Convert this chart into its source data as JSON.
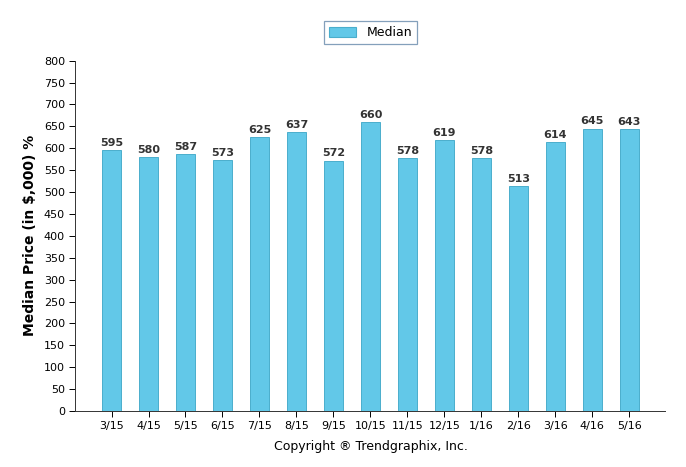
{
  "categories": [
    "3/15",
    "4/15",
    "5/15",
    "6/15",
    "7/15",
    "8/15",
    "9/15",
    "10/15",
    "11/15",
    "12/15",
    "1/16",
    "2/16",
    "3/16",
    "4/16",
    "5/16"
  ],
  "values": [
    595,
    580,
    587,
    573,
    625,
    637,
    572,
    660,
    578,
    619,
    578,
    513,
    614,
    645,
    643
  ],
  "bar_color": "#62C8E8",
  "bar_edge_color": "#4AAECC",
  "ylabel": "Median Price (in $,000) %",
  "xlabel": "Copyright ® Trendgraphix, Inc.",
  "ylim": [
    0,
    800
  ],
  "yticks": [
    0,
    50,
    100,
    150,
    200,
    250,
    300,
    350,
    400,
    450,
    500,
    550,
    600,
    650,
    700,
    750,
    800
  ],
  "legend_label": "Median",
  "legend_box_color": "#62C8E8",
  "legend_box_edge_color": "#4AAECC",
  "bar_label_fontsize": 8,
  "bar_label_color": "#333333",
  "ylabel_fontsize": 10,
  "xlabel_fontsize": 9,
  "tick_fontsize": 8,
  "legend_fontsize": 9,
  "background_color": "#ffffff",
  "spine_color": "#333333",
  "bar_width": 0.5
}
